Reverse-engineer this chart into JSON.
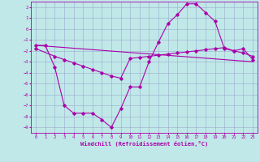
{
  "xlabel": "Windchill (Refroidissement éolien,°C)",
  "bg_color": "#c0e8e8",
  "line_color": "#aa00aa",
  "grid_color": "#99aacc",
  "xlim": [
    -0.5,
    23.5
  ],
  "ylim": [
    -9.5,
    2.5
  ],
  "xticks": [
    0,
    1,
    2,
    3,
    4,
    5,
    6,
    7,
    8,
    9,
    10,
    11,
    12,
    13,
    14,
    15,
    16,
    17,
    18,
    19,
    20,
    21,
    22,
    23
  ],
  "yticks": [
    -9,
    -8,
    -7,
    -6,
    -5,
    -4,
    -3,
    -2,
    -1,
    0,
    1,
    2
  ],
  "curve1_x": [
    0,
    1,
    2,
    3,
    4,
    5,
    6,
    7,
    8,
    9,
    10,
    11,
    12,
    13,
    14,
    15,
    16,
    17,
    18,
    19,
    20,
    21,
    22,
    23
  ],
  "curve1_y": [
    -1.5,
    -1.5,
    -3.5,
    -7.0,
    -7.7,
    -7.7,
    -7.7,
    -8.3,
    -9.0,
    -7.3,
    -5.3,
    -5.3,
    -3.0,
    -1.2,
    0.5,
    1.3,
    2.3,
    2.3,
    1.5,
    0.7,
    -1.8,
    -2.0,
    -1.8,
    -2.8
  ],
  "curve2_x": [
    0,
    2,
    3,
    4,
    5,
    6,
    7,
    8,
    9,
    10,
    11,
    12,
    13,
    14,
    15,
    16,
    17,
    18,
    19,
    20,
    21,
    22,
    23
  ],
  "curve2_y": [
    -1.8,
    -2.5,
    -2.8,
    -3.1,
    -3.4,
    -3.7,
    -4.0,
    -4.3,
    -4.5,
    -2.7,
    -2.6,
    -2.5,
    -2.4,
    -2.3,
    -2.2,
    -2.1,
    -2.0,
    -1.9,
    -1.8,
    -1.7,
    -2.0,
    -2.2,
    -2.5
  ],
  "curve3_x": [
    0,
    23
  ],
  "curve3_y": [
    -1.5,
    -3.0
  ]
}
